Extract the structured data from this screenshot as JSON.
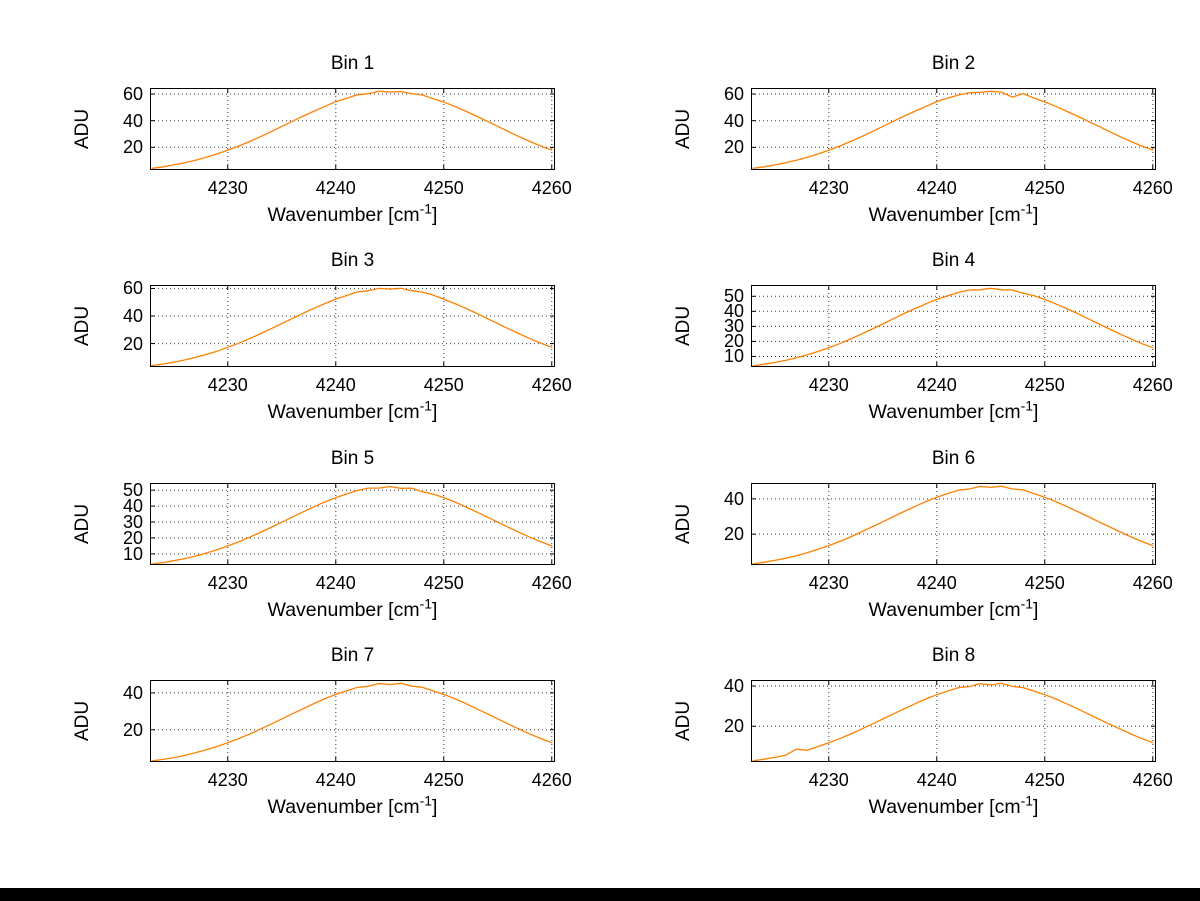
{
  "figure": {
    "background": "#ffffff",
    "bottom_bar_color": "#000000",
    "grid_color": "#3a3a3a",
    "axes_color": "#000000"
  },
  "chart_data": [
    {
      "type": "line",
      "title": "Bin 1",
      "ylabel": "ADU",
      "xlabel": {
        "base": "Wavenumber [cm",
        "sup": "-1",
        "close": "]"
      },
      "xlim": [
        4222.8,
        4260.3
      ],
      "ylim": [
        3,
        64.5
      ],
      "xticks": [
        4230,
        4240,
        4250,
        4260
      ],
      "yticks": [
        20,
        40,
        60
      ],
      "grid": true,
      "legend": "none",
      "line_color": "#ff8000",
      "x_start": 4223,
      "x_step": 1,
      "y": [
        4.3,
        5.4,
        6.8,
        8.4,
        10.3,
        12.5,
        15.0,
        17.9,
        20.9,
        24.3,
        27.9,
        31.7,
        35.7,
        39.6,
        43.5,
        47.2,
        50.8,
        54.2,
        56.7,
        59.4,
        60.2,
        62.0,
        61.5,
        61.9,
        60.3,
        59.3,
        56.4,
        54.0,
        50.8,
        47.2,
        43.5,
        39.6,
        35.7,
        31.7,
        27.9,
        24.3,
        20.9,
        17.9
      ]
    },
    {
      "type": "line",
      "title": "Bin 2",
      "ylabel": "ADU",
      "xlabel": {
        "base": "Wavenumber [cm",
        "sup": "-1",
        "close": "]"
      },
      "xlim": [
        4222.8,
        4260.3
      ],
      "ylim": [
        3,
        64.5
      ],
      "xticks": [
        4230,
        4240,
        4250,
        4260
      ],
      "yticks": [
        20,
        40,
        60
      ],
      "grid": true,
      "legend": "none",
      "line_color": "#ff8000",
      "x_start": 4223,
      "x_step": 1,
      "y": [
        4.3,
        5.4,
        6.8,
        8.4,
        10.3,
        12.5,
        15.0,
        17.9,
        20.9,
        24.3,
        27.9,
        31.7,
        35.7,
        39.6,
        43.5,
        47.2,
        50.8,
        54.3,
        56.9,
        59.2,
        60.9,
        61.3,
        62.0,
        61.4,
        57.6,
        60.4,
        56.9,
        54.0,
        50.8,
        47.2,
        43.5,
        39.6,
        35.7,
        31.7,
        27.9,
        24.3,
        20.9,
        17.9
      ]
    },
    {
      "type": "line",
      "title": "Bin 3",
      "ylabel": "ADU",
      "xlabel": {
        "base": "Wavenumber [cm",
        "sup": "-1",
        "close": "]"
      },
      "xlim": [
        4222.8,
        4260.3
      ],
      "ylim": [
        3,
        62.5
      ],
      "xticks": [
        4230,
        4240,
        4250,
        4260
      ],
      "yticks": [
        20,
        40,
        60
      ],
      "grid": true,
      "legend": "none",
      "line_color": "#ff8000",
      "x_start": 4223,
      "x_step": 1,
      "y": [
        4.1,
        5.2,
        6.5,
        8.1,
        10.0,
        12.1,
        14.5,
        17.3,
        20.2,
        23.5,
        27.0,
        30.7,
        34.5,
        38.3,
        42.1,
        45.7,
        49.1,
        52.3,
        54.9,
        57.5,
        58.3,
        60.0,
        59.5,
        60.1,
        58.4,
        57.4,
        55.2,
        52.3,
        49.1,
        45.7,
        42.1,
        38.3,
        34.5,
        30.7,
        27.0,
        23.5,
        20.2,
        17.3
      ]
    },
    {
      "type": "line",
      "title": "Bin 4",
      "ylabel": "ADU",
      "xlabel": {
        "base": "Wavenumber [cm",
        "sup": "-1",
        "close": "]"
      },
      "xlim": [
        4222.8,
        4260.3
      ],
      "ylim": [
        3,
        57.5
      ],
      "xticks": [
        4230,
        4240,
        4250,
        4260
      ],
      "yticks": [
        10,
        20,
        30,
        40,
        50
      ],
      "grid": true,
      "legend": "none",
      "line_color": "#ff8000",
      "x_start": 4223,
      "x_step": 1,
      "y": [
        3.8,
        4.8,
        6.0,
        7.4,
        9.1,
        11.1,
        13.3,
        15.8,
        18.5,
        21.6,
        24.8,
        28.2,
        31.6,
        35.1,
        38.6,
        41.9,
        45.0,
        47.9,
        50.3,
        52.5,
        54.2,
        54.3,
        55.3,
        54.3,
        54.2,
        52.0,
        50.3,
        47.9,
        45.0,
        41.9,
        38.6,
        35.1,
        31.6,
        28.2,
        24.8,
        21.6,
        18.5,
        15.8
      ]
    },
    {
      "type": "line",
      "title": "Bin 5",
      "ylabel": "ADU",
      "xlabel": {
        "base": "Wavenumber [cm",
        "sup": "-1",
        "close": "]"
      },
      "xlim": [
        4222.8,
        4260.3
      ],
      "ylim": [
        3,
        54.5
      ],
      "xticks": [
        4230,
        4240,
        4250,
        4260
      ],
      "yticks": [
        10,
        20,
        30,
        40,
        50
      ],
      "grid": true,
      "legend": "none",
      "line_color": "#ff8000",
      "x_start": 4223,
      "x_step": 1,
      "y": [
        3.6,
        4.5,
        5.7,
        7.0,
        8.6,
        10.5,
        12.6,
        15.0,
        17.5,
        20.4,
        23.4,
        26.6,
        29.9,
        33.2,
        36.5,
        39.6,
        42.6,
        45.3,
        47.6,
        49.8,
        51.3,
        51.3,
        52.3,
        51.2,
        51.3,
        49.0,
        47.6,
        45.3,
        42.6,
        39.6,
        36.5,
        33.2,
        29.9,
        26.6,
        23.4,
        20.4,
        17.5,
        15.0
      ]
    },
    {
      "type": "line",
      "title": "Bin 6",
      "ylabel": "ADU",
      "xlabel": {
        "base": "Wavenumber [cm",
        "sup": "-1",
        "close": "]"
      },
      "xlim": [
        4222.8,
        4260.3
      ],
      "ylim": [
        2.5,
        49
      ],
      "xticks": [
        4230,
        4240,
        4250,
        4260
      ],
      "yticks": [
        20,
        40
      ],
      "grid": true,
      "legend": "none",
      "line_color": "#ff8000",
      "x_start": 4223,
      "x_step": 1,
      "y": [
        3.2,
        4.1,
        5.1,
        6.3,
        7.8,
        9.5,
        11.4,
        13.5,
        15.8,
        18.4,
        21.2,
        24.1,
        27.0,
        30.0,
        32.9,
        35.8,
        38.5,
        40.9,
        43.0,
        44.9,
        45.6,
        47.1,
        46.5,
        47.2,
        45.6,
        45.1,
        43.0,
        40.9,
        38.5,
        35.8,
        32.9,
        30.0,
        27.0,
        24.1,
        21.2,
        18.4,
        15.8,
        13.5
      ]
    },
    {
      "type": "line",
      "title": "Bin 7",
      "ylabel": "ADU",
      "xlabel": {
        "base": "Wavenumber [cm",
        "sup": "-1",
        "close": "]"
      },
      "xlim": [
        4222.8,
        4260.3
      ],
      "ylim": [
        2.5,
        47
      ],
      "xticks": [
        4230,
        4240,
        4250,
        4260
      ],
      "yticks": [
        20,
        40
      ],
      "grid": true,
      "legend": "none",
      "line_color": "#ff8000",
      "x_start": 4223,
      "x_step": 1,
      "y": [
        3.1,
        3.9,
        4.9,
        6.1,
        7.5,
        9.1,
        10.9,
        13.0,
        15.2,
        17.6,
        20.3,
        23.0,
        25.9,
        28.7,
        31.5,
        34.3,
        36.9,
        39.2,
        41.2,
        43.0,
        43.6,
        45.1,
        44.5,
        45.2,
        43.7,
        43.1,
        41.2,
        39.2,
        36.9,
        34.3,
        31.5,
        28.7,
        25.9,
        23.0,
        20.3,
        17.6,
        15.2,
        13.0
      ]
    },
    {
      "type": "line",
      "title": "Bin 8",
      "ylabel": "ADU",
      "xlabel": {
        "base": "Wavenumber [cm",
        "sup": "-1",
        "close": "]"
      },
      "xlim": [
        4222.8,
        4260.3
      ],
      "ylim": [
        2.2,
        43
      ],
      "xticks": [
        4230,
        4240,
        4250,
        4260
      ],
      "yticks": [
        20,
        40
      ],
      "grid": true,
      "legend": "none",
      "line_color": "#ff8000",
      "x_start": 4223,
      "x_step": 1,
      "y": [
        2.8,
        3.6,
        4.5,
        5.6,
        8.6,
        8.0,
        9.9,
        11.8,
        13.8,
        16.1,
        18.5,
        21.0,
        23.6,
        26.2,
        28.7,
        31.2,
        33.6,
        35.7,
        37.5,
        39.2,
        39.7,
        41.2,
        40.5,
        41.3,
        39.8,
        39.2,
        37.5,
        35.7,
        33.6,
        31.2,
        28.7,
        26.2,
        23.6,
        21.0,
        18.5,
        16.1,
        13.8,
        11.8
      ]
    }
  ]
}
